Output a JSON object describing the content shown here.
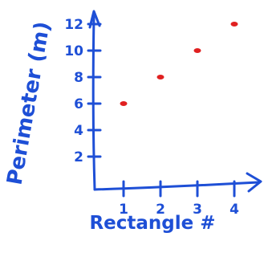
{
  "chart_data": {
    "type": "scatter",
    "title": "",
    "xlabel": "Rectangle #",
    "ylabel": "Perimeter (m)",
    "x_ticks": [
      1,
      2,
      3,
      4
    ],
    "y_ticks": [
      2,
      4,
      6,
      8,
      10,
      12
    ],
    "x_tick_labels": [
      "1",
      "2",
      "3",
      "4"
    ],
    "y_tick_labels": [
      "2",
      "4",
      "6",
      "8",
      "10",
      "12"
    ],
    "xlim": [
      0,
      5
    ],
    "ylim": [
      0,
      13
    ],
    "grid": false,
    "legend": "none",
    "point_color": "#e02020",
    "ink_color": "#1e4fd6",
    "points": [
      {
        "x": 1,
        "y": 6
      },
      {
        "x": 2,
        "y": 8
      },
      {
        "x": 3,
        "y": 10
      },
      {
        "x": 4,
        "y": 12
      }
    ]
  }
}
